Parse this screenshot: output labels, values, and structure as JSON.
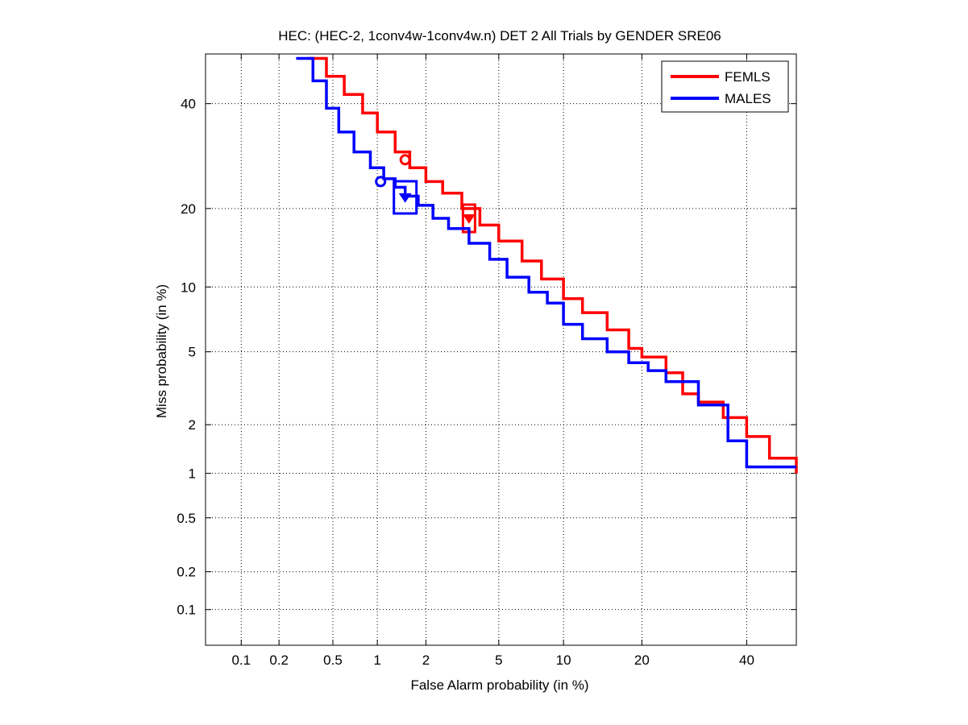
{
  "chart_data": {
    "type": "line",
    "subtype": "det",
    "title": "HEC: (HEC-2, 1conv4w-1conv4w.n) DET 2 All Trials by GENDER SRE06",
    "xlabel": "False Alarm probability (in %)",
    "ylabel": "Miss probability (in %)",
    "xscale": "probit",
    "yscale": "probit",
    "xlim": [
      0.05,
      51
    ],
    "ylim": [
      0.05,
      51
    ],
    "xticks": [
      0.1,
      0.2,
      0.5,
      1,
      2,
      5,
      10,
      20,
      40
    ],
    "xtick_labels": [
      "0.1",
      "0.2",
      "0.5",
      "1",
      "2",
      "5",
      "10",
      "20",
      "40"
    ],
    "yticks": [
      0.1,
      0.2,
      0.5,
      1,
      2,
      5,
      10,
      20,
      40
    ],
    "ytick_labels": [
      "0.1",
      "0.2",
      "0.5",
      "1",
      "2",
      "5",
      "10",
      "20",
      "40"
    ],
    "grid": true,
    "legend_position": "top-right",
    "series": [
      {
        "name": "FEMLS",
        "color": "#ff0000",
        "x": [
          0.33,
          0.45,
          0.6,
          0.8,
          1.0,
          1.3,
          1.6,
          2.0,
          2.5,
          3.2,
          4.0,
          5.0,
          6.5,
          8.0,
          10.0,
          12.0,
          15.0,
          18.0,
          20.0,
          24.0,
          27.0,
          30.0,
          35.0,
          40.0,
          45.0,
          51.0
        ],
        "y": [
          50.0,
          46.0,
          42.0,
          38.0,
          34.0,
          30.0,
          27.0,
          24.5,
          22.5,
          20.0,
          17.5,
          15.3,
          12.8,
          10.8,
          8.9,
          7.7,
          6.4,
          5.2,
          4.7,
          3.9,
          3.0,
          2.7,
          2.2,
          1.7,
          1.25,
          1.0
        ],
        "min_dcf_point": {
          "x": 1.5,
          "y": 28.5
        },
        "act_dcf_point": {
          "x": 3.5,
          "y": 18.5
        }
      },
      {
        "name": "MALES",
        "color": "#0000ff",
        "x": [
          0.27,
          0.36,
          0.45,
          0.55,
          0.7,
          0.9,
          1.1,
          1.3,
          1.5,
          1.8,
          2.2,
          2.7,
          3.5,
          4.5,
          5.5,
          7.0,
          8.5,
          10.0,
          12.0,
          15.0,
          18.0,
          21.0,
          24.0,
          30.0,
          36.0,
          40.0,
          51.0
        ],
        "y": [
          50.0,
          45.0,
          39.0,
          34.0,
          30.0,
          27.0,
          25.0,
          23.5,
          22.0,
          20.5,
          18.5,
          17.0,
          15.0,
          13.0,
          11.0,
          9.5,
          8.5,
          6.8,
          5.8,
          5.0,
          4.4,
          4.0,
          3.5,
          2.6,
          1.6,
          1.1,
          1.1
        ],
        "min_dcf_point": {
          "x": 1.05,
          "y": 24.5
        },
        "act_dcf_point": {
          "x": 1.5,
          "y": 21.8
        }
      }
    ]
  }
}
